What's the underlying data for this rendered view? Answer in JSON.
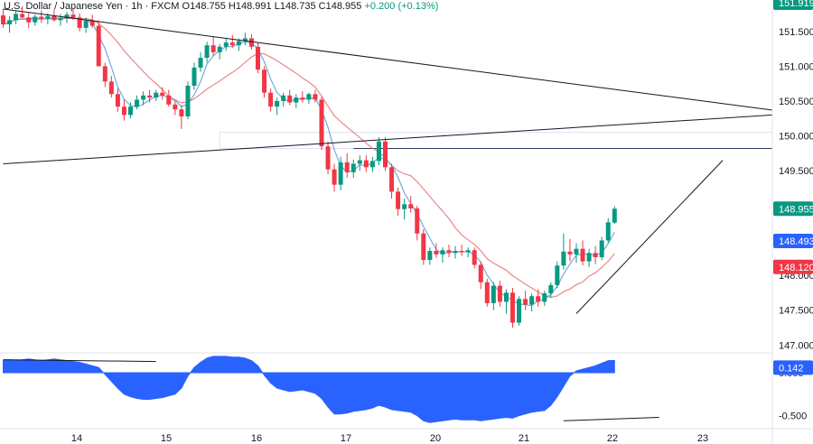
{
  "header": {
    "symbol": "U.S. Dollar / Japanese Yen",
    "interval": "1h",
    "exchange": "FXCM",
    "open_label": "O",
    "open": "148.755",
    "high_label": "H",
    "high": "148.991",
    "low_label": "L",
    "low": "148.735",
    "close_label": "C",
    "close": "148.955",
    "change": "+0.200 (+0.13%)"
  },
  "colors": {
    "up": "#089981",
    "down": "#f23645",
    "oscillator": "#2962ff",
    "ma_fast": "#5b9bd5",
    "ma_slow": "#e57373",
    "trendline": "#131722",
    "zone": "#d8e2f3",
    "badge_price": "#089981",
    "badge_fast": "#2962ff",
    "badge_slow": "#f23645",
    "badge_osc": "#2962ff"
  },
  "chart_data": {
    "type": "candlestick",
    "x_ticks": [
      "14",
      "15",
      "16",
      "17",
      "20",
      "21",
      "22",
      "23"
    ],
    "y_ticks": [
      "147.000",
      "147.500",
      "148.000",
      "148.500",
      "149.000",
      "149.500",
      "150.000",
      "150.500",
      "151.000",
      "151.500"
    ],
    "ylim": [
      146.9,
      151.95
    ],
    "top_badge": "151.919",
    "last_price": "148.955",
    "ma_fast_last": "148.493",
    "ma_slow_last": "148.120",
    "osc_value": "0.142",
    "osc_ticks": [
      "0.000",
      "-0.500"
    ],
    "osc_ylim": [
      -0.62,
      0.22
    ],
    "candles": [
      [
        151.73,
        151.82,
        151.55,
        151.6
      ],
      [
        151.6,
        151.72,
        151.48,
        151.66
      ],
      [
        151.66,
        151.8,
        151.6,
        151.75
      ],
      [
        151.75,
        151.86,
        151.68,
        151.7
      ],
      [
        151.7,
        151.78,
        151.55,
        151.63
      ],
      [
        151.63,
        151.74,
        151.58,
        151.71
      ],
      [
        151.71,
        151.8,
        151.62,
        151.68
      ],
      [
        151.68,
        151.76,
        151.6,
        151.72
      ],
      [
        151.72,
        151.82,
        151.64,
        151.66
      ],
      [
        151.66,
        151.75,
        151.58,
        151.69
      ],
      [
        151.69,
        151.78,
        151.62,
        151.74
      ],
      [
        151.74,
        151.82,
        151.66,
        151.7
      ],
      [
        151.7,
        151.76,
        151.5,
        151.55
      ],
      [
        151.55,
        151.7,
        151.48,
        151.65
      ],
      [
        151.65,
        151.74,
        151.55,
        151.58
      ],
      [
        151.58,
        151.66,
        151.0,
        151.0
      ],
      [
        151.0,
        151.05,
        150.7,
        150.78
      ],
      [
        150.78,
        150.86,
        150.55,
        150.6
      ],
      [
        150.6,
        150.68,
        150.35,
        150.42
      ],
      [
        150.42,
        150.52,
        150.22,
        150.3
      ],
      [
        150.3,
        150.48,
        150.25,
        150.42
      ],
      [
        150.42,
        150.58,
        150.38,
        150.52
      ],
      [
        150.52,
        150.64,
        150.44,
        150.58
      ],
      [
        150.58,
        150.66,
        150.48,
        150.55
      ],
      [
        150.55,
        150.66,
        150.5,
        150.62
      ],
      [
        150.62,
        150.7,
        150.52,
        150.58
      ],
      [
        150.58,
        150.66,
        150.42,
        150.45
      ],
      [
        150.45,
        150.5,
        150.3,
        150.38
      ],
      [
        150.38,
        150.44,
        150.1,
        150.28
      ],
      [
        150.28,
        150.78,
        150.24,
        150.72
      ],
      [
        150.72,
        151.05,
        150.66,
        150.98
      ],
      [
        150.98,
        151.2,
        150.92,
        151.12
      ],
      [
        151.12,
        151.35,
        151.05,
        151.3
      ],
      [
        151.3,
        151.42,
        151.15,
        151.2
      ],
      [
        151.2,
        151.32,
        151.1,
        151.28
      ],
      [
        151.28,
        151.4,
        151.22,
        151.34
      ],
      [
        151.34,
        151.45,
        151.26,
        151.3
      ],
      [
        151.3,
        151.4,
        151.22,
        151.36
      ],
      [
        151.36,
        151.48,
        151.3,
        151.4
      ],
      [
        151.4,
        151.46,
        151.24,
        151.28
      ],
      [
        151.28,
        151.34,
        150.9,
        150.95
      ],
      [
        150.95,
        151.0,
        150.55,
        150.62
      ],
      [
        150.62,
        150.68,
        150.35,
        150.42
      ],
      [
        150.42,
        150.55,
        150.3,
        150.5
      ],
      [
        150.5,
        150.62,
        150.42,
        150.58
      ],
      [
        150.58,
        150.66,
        150.44,
        150.48
      ],
      [
        150.48,
        150.6,
        150.4,
        150.55
      ],
      [
        150.55,
        150.64,
        150.48,
        150.52
      ],
      [
        150.52,
        150.62,
        150.46,
        150.6
      ],
      [
        150.6,
        150.66,
        150.48,
        150.52
      ],
      [
        150.52,
        150.56,
        149.8,
        149.85
      ],
      [
        149.85,
        149.92,
        149.45,
        149.52
      ],
      [
        149.52,
        149.6,
        149.2,
        149.3
      ],
      [
        149.3,
        149.7,
        149.22,
        149.62
      ],
      [
        149.62,
        149.75,
        149.4,
        149.48
      ],
      [
        149.48,
        149.66,
        149.4,
        149.6
      ],
      [
        149.6,
        149.72,
        149.5,
        149.65
      ],
      [
        149.65,
        149.72,
        149.48,
        149.55
      ],
      [
        149.55,
        149.7,
        149.48,
        149.64
      ],
      [
        149.64,
        149.98,
        149.58,
        149.92
      ],
      [
        149.92,
        149.98,
        149.5,
        149.55
      ],
      [
        149.55,
        149.6,
        149.1,
        149.2
      ],
      [
        149.2,
        149.26,
        148.85,
        148.95
      ],
      [
        148.95,
        149.1,
        148.8,
        149.02
      ],
      [
        149.02,
        149.14,
        148.9,
        148.96
      ],
      [
        148.96,
        149.0,
        148.5,
        148.6
      ],
      [
        148.6,
        148.66,
        148.15,
        148.22
      ],
      [
        148.22,
        148.4,
        148.15,
        148.35
      ],
      [
        148.35,
        148.46,
        148.25,
        148.3
      ],
      [
        148.3,
        148.4,
        148.18,
        148.36
      ],
      [
        148.36,
        148.44,
        148.26,
        148.32
      ],
      [
        148.32,
        148.42,
        148.24,
        148.35
      ],
      [
        148.35,
        148.44,
        148.28,
        148.33
      ],
      [
        148.33,
        148.4,
        148.26,
        148.36
      ],
      [
        148.36,
        148.4,
        148.1,
        148.15
      ],
      [
        148.15,
        148.2,
        147.8,
        147.9
      ],
      [
        147.9,
        147.95,
        147.55,
        147.6
      ],
      [
        147.6,
        147.9,
        147.5,
        147.85
      ],
      [
        147.85,
        147.92,
        147.55,
        147.62
      ],
      [
        147.62,
        147.8,
        147.45,
        147.75
      ],
      [
        147.75,
        147.82,
        147.25,
        147.32
      ],
      [
        147.32,
        147.7,
        147.28,
        147.66
      ],
      [
        147.66,
        147.78,
        147.5,
        147.58
      ],
      [
        147.58,
        147.74,
        147.48,
        147.7
      ],
      [
        147.7,
        147.8,
        147.55,
        147.62
      ],
      [
        147.62,
        147.78,
        147.56,
        147.74
      ],
      [
        147.74,
        147.9,
        147.68,
        147.86
      ],
      [
        147.86,
        148.2,
        147.82,
        148.14
      ],
      [
        148.14,
        148.6,
        148.08,
        148.34
      ],
      [
        148.34,
        148.52,
        148.2,
        148.3
      ],
      [
        148.3,
        148.46,
        148.18,
        148.38
      ],
      [
        148.38,
        148.5,
        148.14,
        148.2
      ],
      [
        148.2,
        148.38,
        148.12,
        148.32
      ],
      [
        148.32,
        148.42,
        148.16,
        148.26
      ],
      [
        148.26,
        148.55,
        148.22,
        148.5
      ],
      [
        148.5,
        148.82,
        148.46,
        148.76
      ],
      [
        148.755,
        148.991,
        148.735,
        148.955
      ]
    ],
    "oscillator": [
      0.14,
      0.15,
      0.14,
      0.15,
      0.16,
      0.15,
      0.14,
      0.15,
      0.16,
      0.15,
      0.14,
      0.13,
      0.12,
      0.1,
      0.08,
      0.06,
      -0.02,
      -0.1,
      -0.18,
      -0.25,
      -0.28,
      -0.3,
      -0.31,
      -0.31,
      -0.3,
      -0.29,
      -0.27,
      -0.25,
      -0.18,
      -0.04,
      0.06,
      0.12,
      0.17,
      0.19,
      0.19,
      0.19,
      0.18,
      0.18,
      0.17,
      0.14,
      0.08,
      -0.03,
      -0.12,
      -0.18,
      -0.2,
      -0.22,
      -0.21,
      -0.2,
      -0.22,
      -0.24,
      -0.3,
      -0.4,
      -0.48,
      -0.48,
      -0.47,
      -0.45,
      -0.44,
      -0.43,
      -0.41,
      -0.38,
      -0.4,
      -0.43,
      -0.44,
      -0.45,
      -0.46,
      -0.5,
      -0.56,
      -0.58,
      -0.57,
      -0.56,
      -0.55,
      -0.54,
      -0.55,
      -0.55,
      -0.55,
      -0.56,
      -0.55,
      -0.54,
      -0.53,
      -0.52,
      -0.53,
      -0.5,
      -0.48,
      -0.46,
      -0.45,
      -0.44,
      -0.38,
      -0.28,
      -0.16,
      -0.04,
      0.02,
      0.04,
      0.06,
      0.08,
      0.11,
      0.14,
      0.142
    ],
    "overlays": {
      "trendline_upper": [
        [
          0,
          151.82
        ],
        [
          143,
          150.37
        ]
      ],
      "trendline_lower": [
        [
          0,
          149.6
        ],
        [
          143,
          150.3
        ]
      ],
      "zone": {
        "from_index": 34,
        "to_index": 143,
        "y_top": 150.05,
        "y_bottom": 149.82
      },
      "level_line": {
        "from_index": 55,
        "to_index": 143,
        "y": 149.82
      },
      "rising_line": [
        [
          90,
          147.45
        ],
        [
          113,
          149.65
        ]
      ],
      "osc_line_1": [
        [
          0,
          0.15
        ],
        [
          24,
          0.13
        ]
      ],
      "osc_line_2": [
        [
          88,
          -0.56
        ],
        [
          103,
          -0.52
        ]
      ]
    }
  }
}
